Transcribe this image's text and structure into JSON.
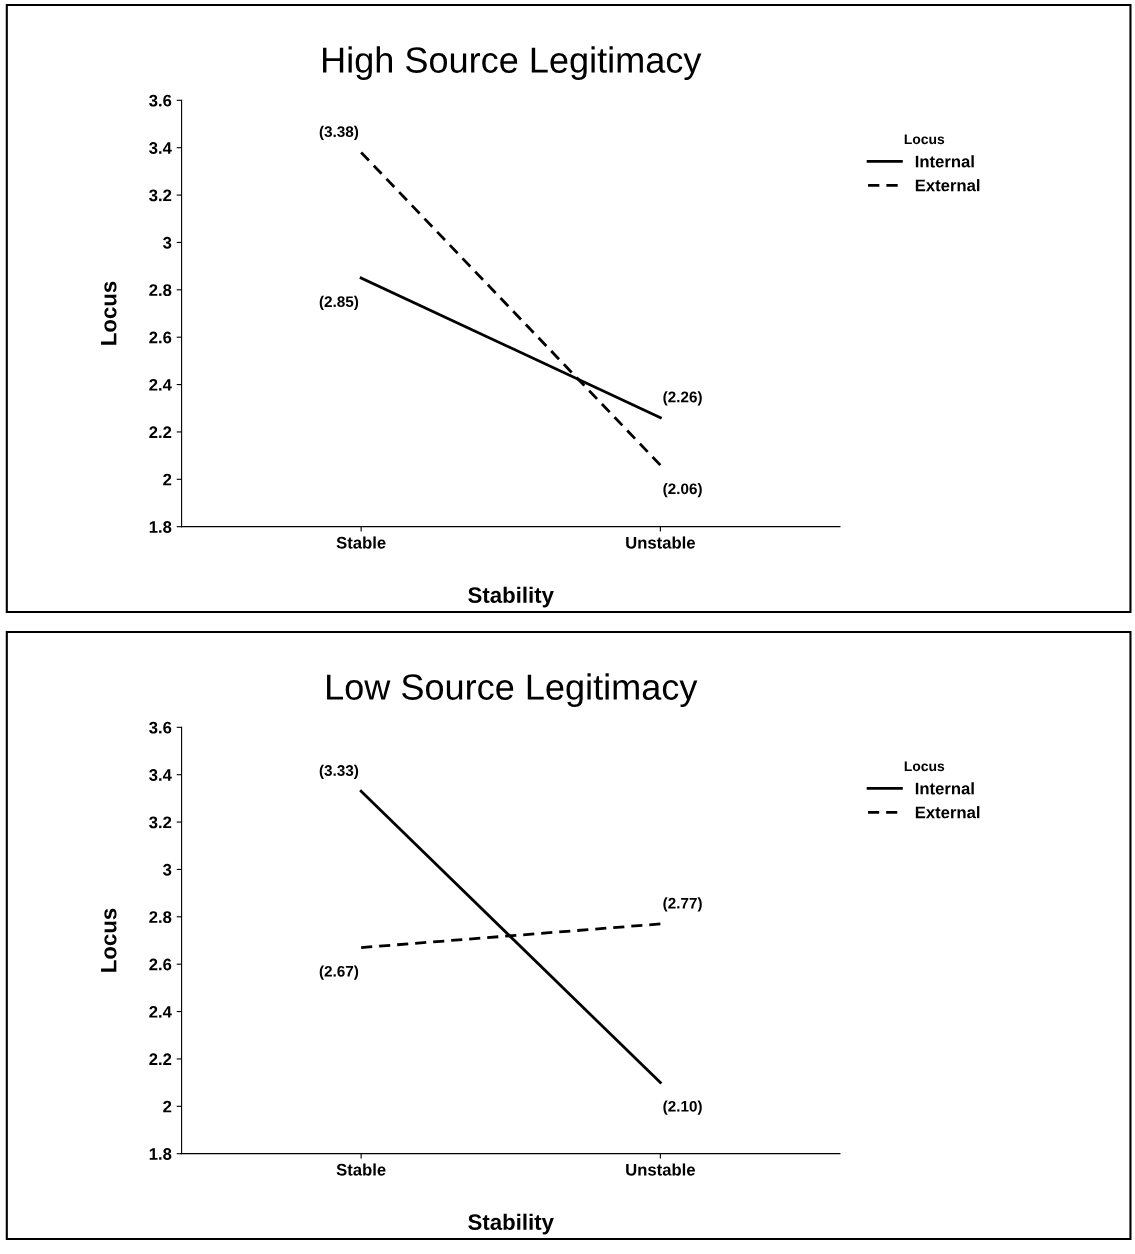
{
  "chart_data": [
    {
      "type": "line",
      "title": "High Source Legitimacy",
      "xlabel": "Stability",
      "ylabel": "Locus",
      "legend_title": "Locus",
      "legend": "right",
      "grid": false,
      "marker": "none",
      "categories": [
        "Stable",
        "Unstable"
      ],
      "ylim": [
        1.8,
        3.6
      ],
      "yticks": [
        1.8,
        2,
        2.2,
        2.4,
        2.6,
        2.8,
        3,
        3.2,
        3.4,
        3.6
      ],
      "series": [
        {
          "name": "Internal",
          "color": "#000000",
          "line_style": "solid",
          "values": [
            2.85,
            2.26
          ],
          "value_labels": [
            "(2.85)",
            "(2.26)"
          ]
        },
        {
          "name": "External",
          "color": "#000000",
          "line_style": "dashed",
          "values": [
            3.38,
            2.06
          ],
          "value_labels": [
            "(3.38)",
            "(2.06)"
          ]
        }
      ]
    },
    {
      "type": "line",
      "title": "Low Source Legitimacy",
      "xlabel": "Stability",
      "ylabel": "Locus",
      "legend_title": "Locus",
      "legend": "right",
      "grid": false,
      "marker": "none",
      "categories": [
        "Stable",
        "Unstable"
      ],
      "ylim": [
        1.8,
        3.6
      ],
      "yticks": [
        1.8,
        2,
        2.2,
        2.4,
        2.6,
        2.8,
        3,
        3.2,
        3.4,
        3.6
      ],
      "series": [
        {
          "name": "Internal",
          "color": "#000000",
          "line_style": "solid",
          "values": [
            3.33,
            2.1
          ],
          "value_labels": [
            "(3.33)",
            "(2.10)"
          ]
        },
        {
          "name": "External",
          "color": "#000000",
          "line_style": "dashed",
          "values": [
            2.67,
            2.77
          ],
          "value_labels": [
            "(2.67)",
            "(2.77)"
          ]
        }
      ]
    }
  ]
}
